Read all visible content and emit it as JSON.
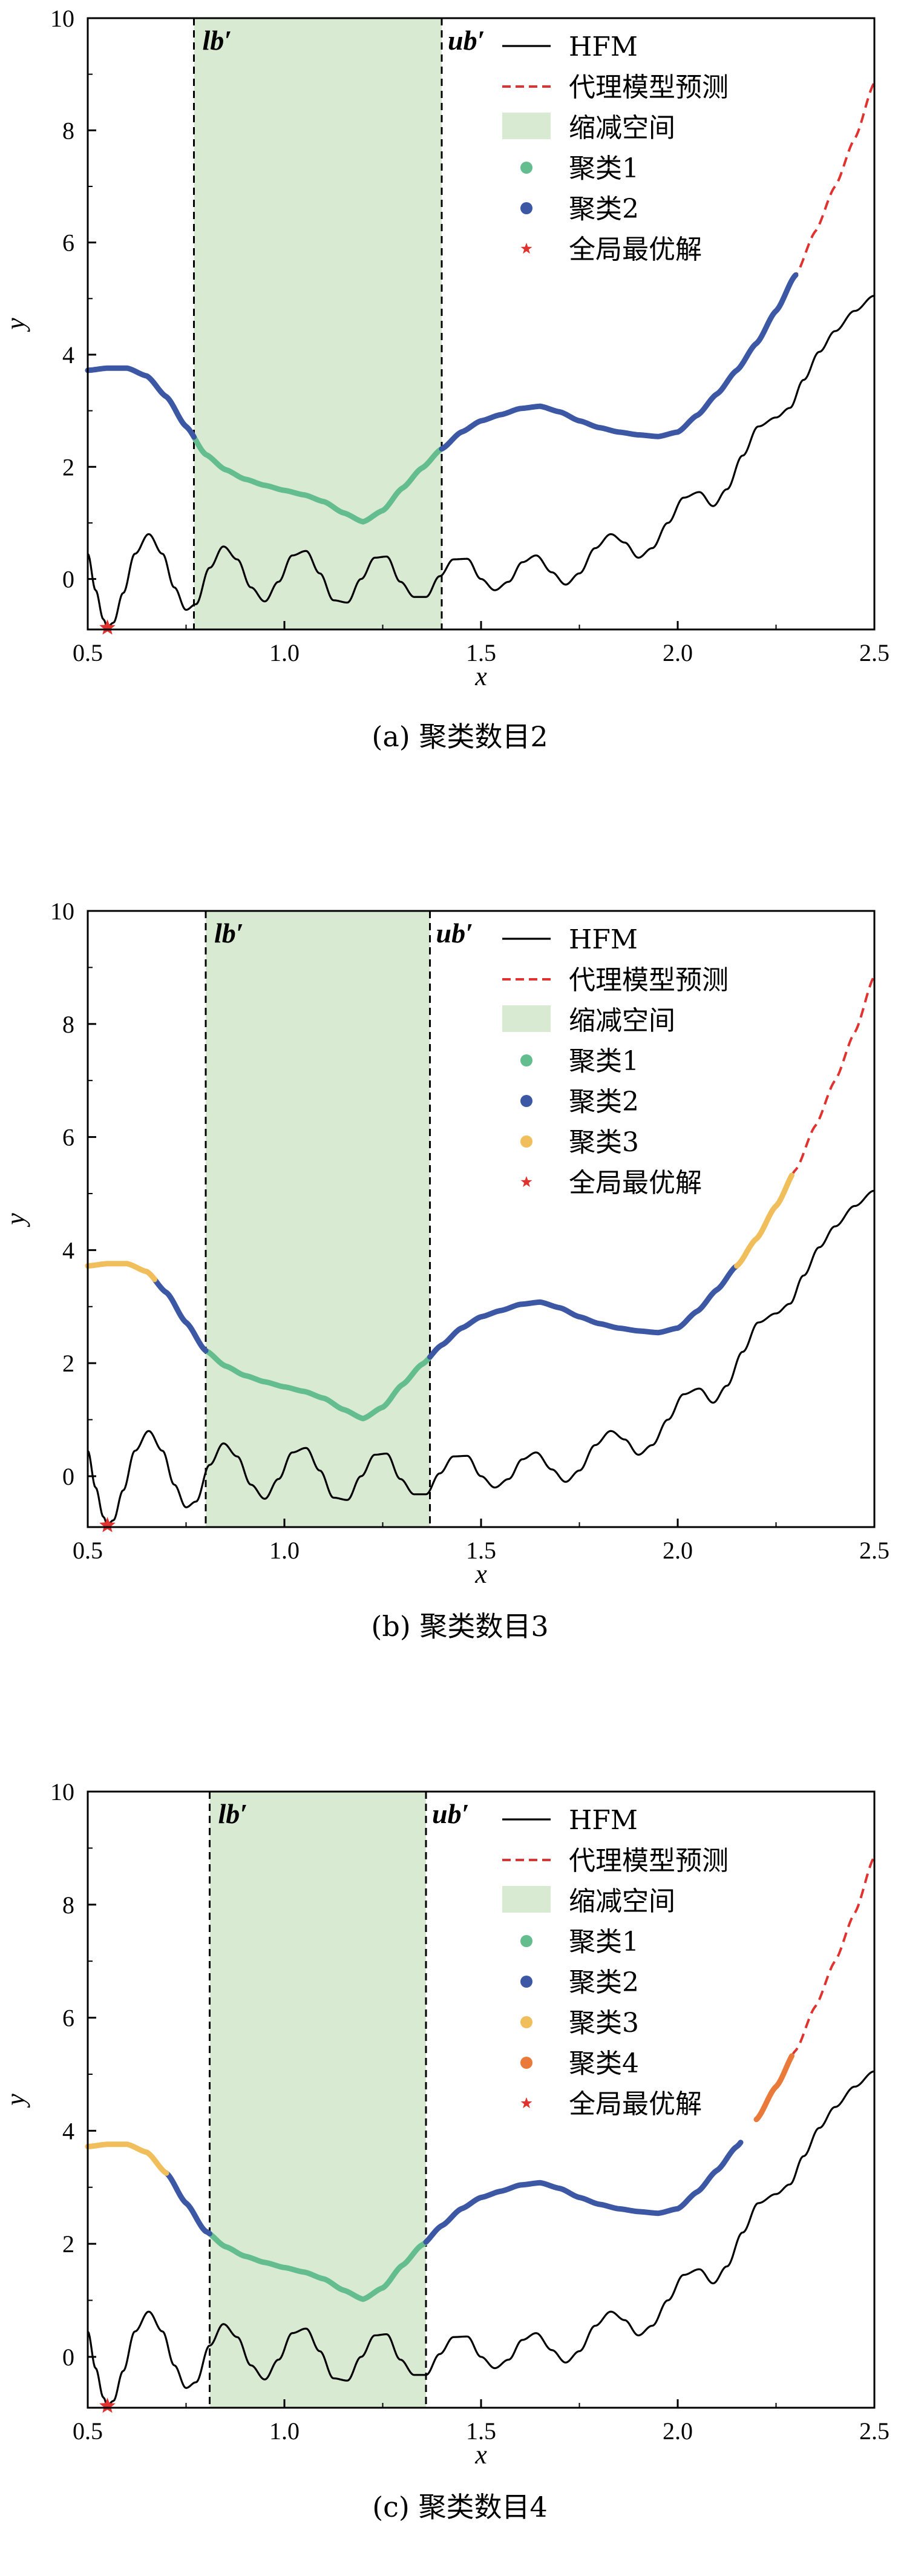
{
  "colors": {
    "hfm": "#000000",
    "surrogate": "#e0322f",
    "reduced_space": "#d9ead3",
    "cluster1": "#63bd8f",
    "cluster2": "#3c58a5",
    "cluster3": "#f0be5a",
    "cluster4": "#ea7a3a",
    "global_opt": "#e0322f"
  },
  "chart_data": [
    {
      "type": "line",
      "caption": "(a) 聚类数目2",
      "xlabel": "x",
      "ylabel": "y",
      "xlim": [
        0.5,
        2.5
      ],
      "ylim": [
        -0.9,
        10
      ],
      "xticks": [
        "0.5",
        "1.0",
        "1.5",
        "2.0",
        "2.5"
      ],
      "yticks": [
        "0",
        "2",
        "4",
        "6",
        "8",
        "10"
      ],
      "bounds": {
        "lb": 0.77,
        "ub": 1.4,
        "lb_label": "lb′",
        "ub_label": "ub′"
      },
      "legend": [
        "HFM",
        "代理模型预测",
        "缩减空间",
        "聚类1",
        "聚类2",
        "全局最优解"
      ],
      "legend_position": "top-right",
      "clusters": [
        {
          "name": "聚类1",
          "color_key": "cluster1",
          "ranges": [
            [
              0.77,
              1.4
            ]
          ]
        },
        {
          "name": "聚类2",
          "color_key": "cluster2",
          "ranges": [
            [
              0.5,
              0.77
            ],
            [
              1.4,
              2.3
            ]
          ]
        }
      ],
      "global_optimum": {
        "x": 0.55,
        "y": -0.87
      }
    },
    {
      "type": "line",
      "caption": "(b) 聚类数目3",
      "xlabel": "x",
      "ylabel": "y",
      "xlim": [
        0.5,
        2.5
      ],
      "ylim": [
        -0.9,
        10
      ],
      "xticks": [
        "0.5",
        "1.0",
        "1.5",
        "2.0",
        "2.5"
      ],
      "yticks": [
        "0",
        "2",
        "4",
        "6",
        "8",
        "10"
      ],
      "bounds": {
        "lb": 0.8,
        "ub": 1.37,
        "lb_label": "lb′",
        "ub_label": "ub′"
      },
      "legend": [
        "HFM",
        "代理模型预测",
        "缩减空间",
        "聚类1",
        "聚类2",
        "聚类3",
        "全局最优解"
      ],
      "legend_position": "top-right",
      "clusters": [
        {
          "name": "聚类1",
          "color_key": "cluster1",
          "ranges": [
            [
              0.8,
              1.37
            ]
          ]
        },
        {
          "name": "聚类2",
          "color_key": "cluster2",
          "ranges": [
            [
              0.67,
              0.8
            ],
            [
              1.37,
              2.15
            ]
          ]
        },
        {
          "name": "聚类3",
          "color_key": "cluster3",
          "ranges": [
            [
              0.5,
              0.67
            ],
            [
              2.15,
              2.29
            ]
          ]
        }
      ],
      "global_optimum": {
        "x": 0.55,
        "y": -0.87
      }
    },
    {
      "type": "line",
      "caption": "(c) 聚类数目4",
      "xlabel": "x",
      "ylabel": "y",
      "xlim": [
        0.5,
        2.5
      ],
      "ylim": [
        -0.9,
        10
      ],
      "xticks": [
        "0.5",
        "1.0",
        "1.5",
        "2.0",
        "2.5"
      ],
      "yticks": [
        "0",
        "2",
        "4",
        "6",
        "8",
        "10"
      ],
      "bounds": {
        "lb": 0.81,
        "ub": 1.36,
        "lb_label": "lb′",
        "ub_label": "ub′"
      },
      "legend": [
        "HFM",
        "代理模型预测",
        "缩减空间",
        "聚类1",
        "聚类2",
        "聚类3",
        "聚类4",
        "全局最优解"
      ],
      "legend_position": "top-right",
      "clusters": [
        {
          "name": "聚类1",
          "color_key": "cluster1",
          "ranges": [
            [
              0.81,
              1.36
            ]
          ]
        },
        {
          "name": "聚类2",
          "color_key": "cluster2",
          "ranges": [
            [
              0.7,
              0.81
            ],
            [
              1.36,
              2.16
            ]
          ]
        },
        {
          "name": "聚类3",
          "color_key": "cluster3",
          "ranges": [
            [
              0.5,
              0.7
            ]
          ]
        },
        {
          "name": "聚类4",
          "color_key": "cluster4",
          "ranges": [
            [
              2.2,
              2.29
            ]
          ]
        }
      ],
      "global_optimum": {
        "x": 0.55,
        "y": -0.87
      }
    }
  ]
}
